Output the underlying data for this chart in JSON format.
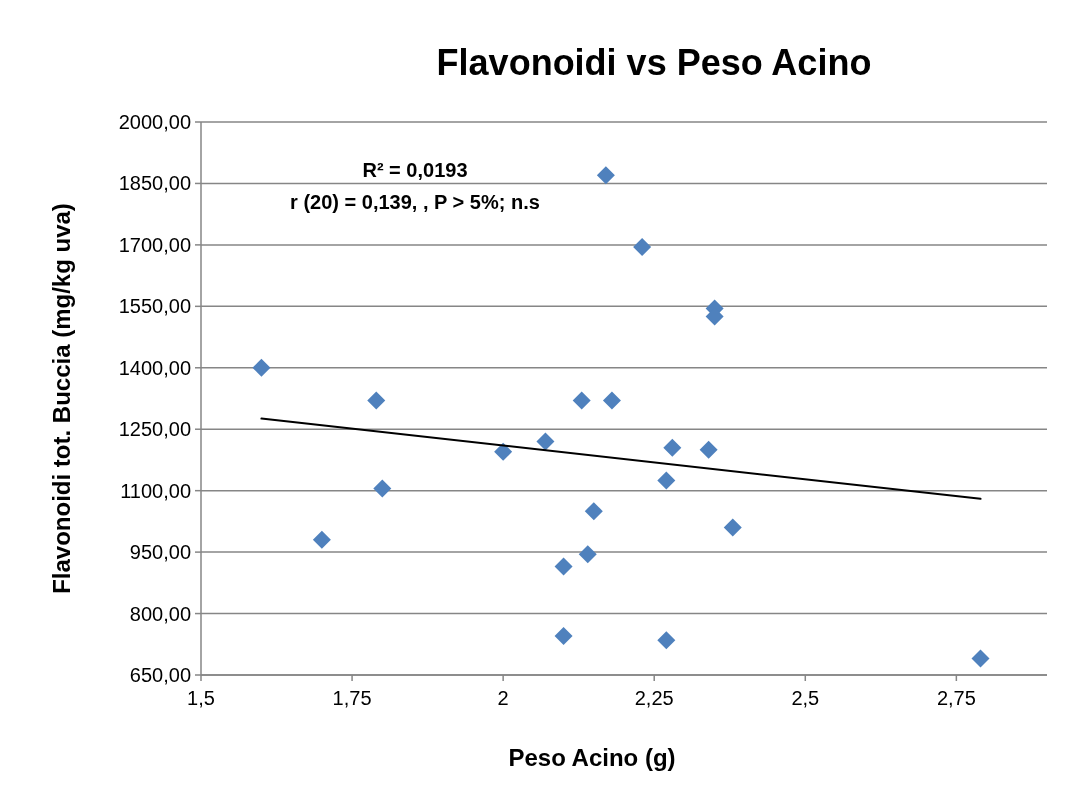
{
  "chart_data": {
    "type": "scatter",
    "title": "Flavonoidi vs Peso Acino",
    "xlabel": "Peso Acino (g)",
    "ylabel": "Flavonoidi  tot. Buccia (mg/kg uva)",
    "annotations": [
      "R² = 0,0193",
      "r (20) = 0,139, , P > 5%; n.s"
    ],
    "xlim": [
      1.5,
      2.9
    ],
    "xticks": [
      {
        "value": 1.5,
        "label": "1,5"
      },
      {
        "value": 1.75,
        "label": "1,75"
      },
      2,
      {
        "value": 2.25,
        "label": "2,25"
      },
      {
        "value": 2.5,
        "label": "2,5"
      },
      {
        "value": 2.75,
        "label": "2,75"
      }
    ],
    "ylim": [
      650,
      2000
    ],
    "yticks": [
      {
        "value": 650,
        "label": "650,00"
      },
      {
        "value": 800,
        "label": "800,00"
      },
      {
        "value": 950,
        "label": "950,00"
      },
      {
        "value": 1100,
        "label": "1100,00"
      },
      {
        "value": 1250,
        "label": "1250,00"
      },
      {
        "value": 1400,
        "label": "1400,00"
      },
      {
        "value": 1550,
        "label": "1550,00"
      },
      {
        "value": 1700,
        "label": "1700,00"
      },
      {
        "value": 1850,
        "label": "1850,00"
      },
      {
        "value": 2000,
        "label": "2000,00"
      }
    ],
    "grid": "y",
    "marker": "diamond",
    "series": [
      {
        "color": "#4f81bd",
        "x": [
          1.6,
          1.7,
          1.79,
          1.8,
          2.0,
          2.07,
          2.1,
          2.1,
          2.14,
          2.13,
          2.15,
          2.17,
          2.18,
          2.23,
          2.27,
          2.27,
          2.28,
          2.34,
          2.35,
          2.35,
          2.38,
          2.79
        ],
        "values": [
          1400,
          980,
          1320,
          1105,
          1195,
          1220,
          915,
          745,
          945,
          1320,
          1050,
          1870,
          1320,
          1695,
          1125,
          735,
          1205,
          1200,
          1545,
          1525,
          1010,
          690
        ]
      },
      {
        "type": "line",
        "color": "#000000",
        "line_style": "solid",
        "marker": "none",
        "x": [
          1.6,
          2.79
        ],
        "values": [
          1276,
          1080
        ]
      }
    ]
  }
}
